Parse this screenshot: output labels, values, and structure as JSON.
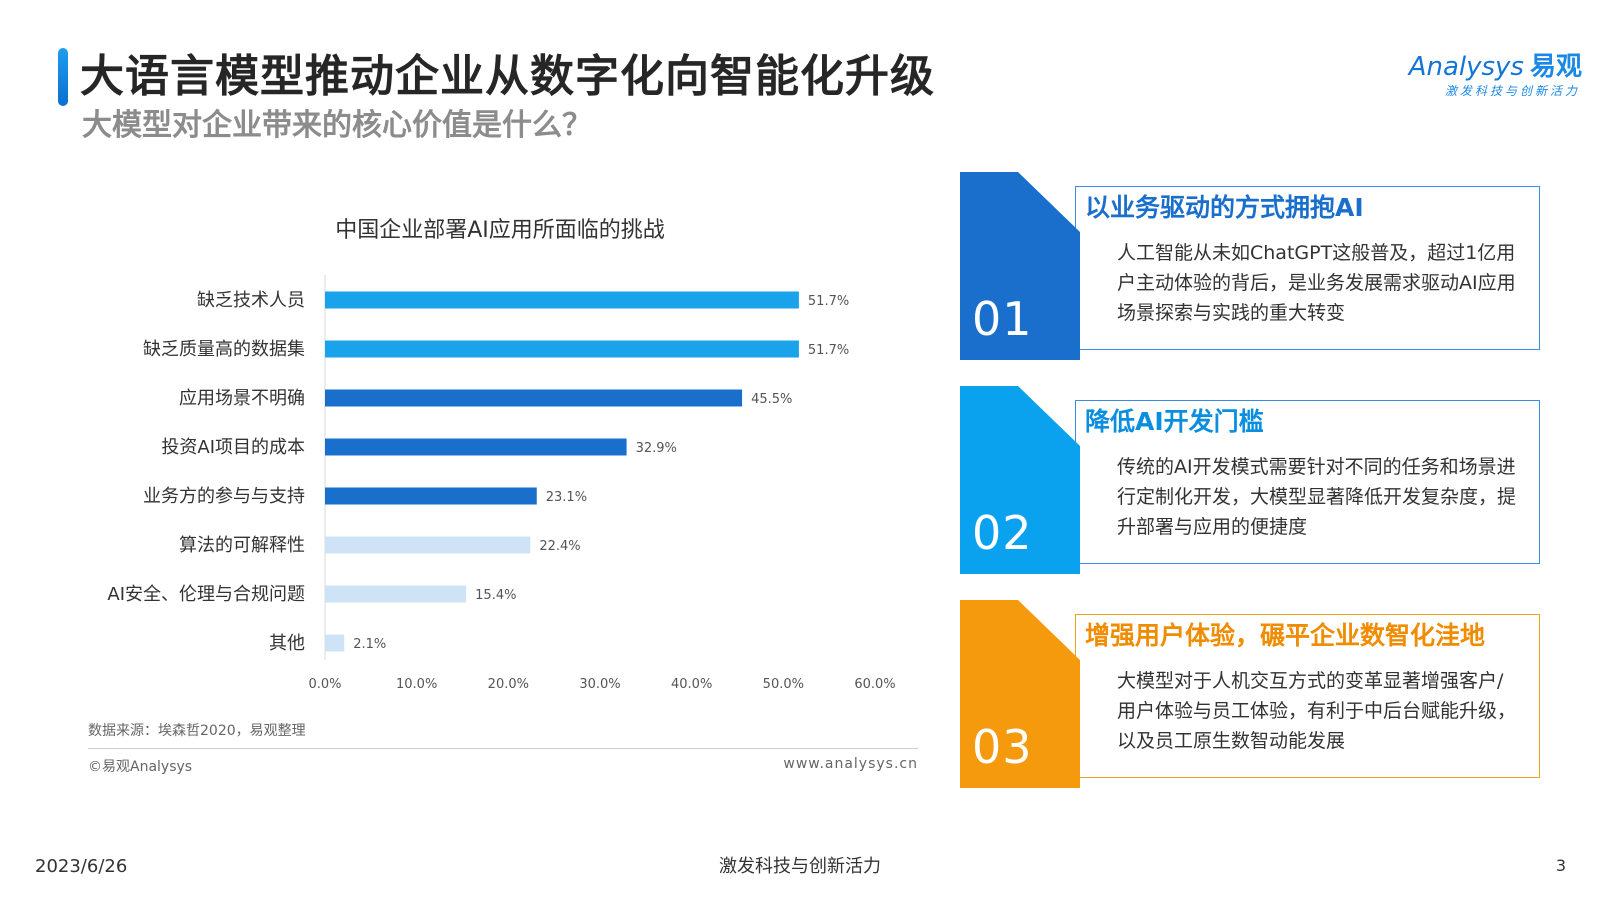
{
  "header": {
    "title": "大语言模型推动企业从数字化向智能化升级",
    "subtitle": "大模型对企业带来的核心价值是什么？"
  },
  "logo": {
    "brand": "Analysys",
    "brand_cn": "易观",
    "tagline": "激发科技与创新活力"
  },
  "chart_title": "中国企业部署AI应用所面临的挑战",
  "chart_data": {
    "type": "bar",
    "orientation": "horizontal",
    "title": "中国企业部署AI应用所面临的挑战",
    "categories": [
      "缺乏技术人员",
      "缺乏质量高的数据集",
      "应用场景不明确",
      "投资AI项目的成本",
      "业务方的参与与支持",
      "算法的可解释性",
      "AI安全、伦理与合规问题",
      "其他"
    ],
    "values": [
      51.7,
      51.7,
      45.5,
      32.9,
      23.1,
      22.4,
      15.4,
      2.1
    ],
    "value_labels": [
      "51.7%",
      "51.7%",
      "45.5%",
      "32.9%",
      "23.1%",
      "22.4%",
      "15.4%",
      "2.1%"
    ],
    "bar_colors": [
      "#1aa3ea",
      "#1aa3ea",
      "#1a6fcc",
      "#1a6fcc",
      "#1a6fcc",
      "#cfe3f6",
      "#cfe3f6",
      "#cfe3f6"
    ],
    "x_ticks": [
      "0.0%",
      "10.0%",
      "20.0%",
      "30.0%",
      "40.0%",
      "50.0%",
      "60.0%"
    ],
    "xlim": [
      0,
      60
    ],
    "grid": false
  },
  "source_note": "数据来源：埃森哲2020，易观整理",
  "copyright": "©易观Analysys",
  "website": "www.analysys.cn",
  "cards": [
    {
      "num": "01",
      "title": "以业务驱动的方式拥抱AI",
      "text": "人工智能从未如ChatGPT这般普及，超过1亿用户主动体验的背后，是业务发展需求驱动AI应用场景探索与实践的重大转变",
      "color": "#1a6fcc",
      "title_color": "#1a6fcc"
    },
    {
      "num": "02",
      "title": "降低AI开发门槛",
      "text": "传统的AI开发模式需要针对不同的任务和场景进行定制化开发，大模型显著降低开发复杂度，提升部署与应用的便捷度",
      "color": "#0aa2ee",
      "title_color": "#0a8fe0"
    },
    {
      "num": "03",
      "title": "增强用户体验，碾平企业数智化洼地",
      "text": "大模型对于人机交互方式的变革显著增强客户/用户体验与员工体验，有利于中后台赋能升级，以及员工原生数智动能发展",
      "color": "#f59a0c",
      "title_color": "#f08c00"
    }
  ],
  "footer": {
    "date": "2023/6/26",
    "slogan": "激发科技与创新活力",
    "page": "3"
  }
}
